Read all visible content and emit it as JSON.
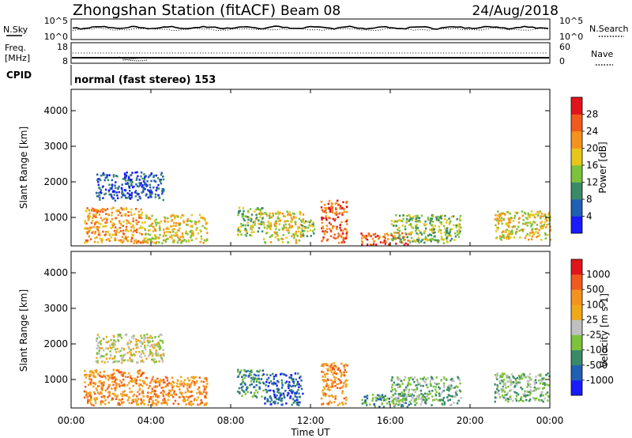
{
  "header": {
    "station": "Zhongshan Station (fitACF)",
    "beam": "Beam 08",
    "date": "24/Aug/2018"
  },
  "noise_panel": {
    "left_label": "N.Sky",
    "right_label": "N.Search",
    "left_ticks": [
      "10^5",
      "10^0"
    ],
    "right_ticks": [
      "10^5",
      "10^0"
    ]
  },
  "freq_panel": {
    "left_label": "Freq.",
    "left_unit": "[MHz]",
    "right_label": "Nave",
    "left_ticks": [
      "18",
      "8"
    ],
    "right_ticks": [
      "60",
      "0"
    ]
  },
  "cpid": {
    "label": "CPID",
    "text": "normal (fast stereo) 153"
  },
  "x_axis": {
    "label": "Time UT",
    "ticks": [
      "00:00",
      "04:00",
      "08:00",
      "12:00",
      "16:00",
      "20:00",
      "00:00"
    ],
    "range_hours": [
      0,
      24
    ]
  },
  "chart_data": [
    {
      "type": "heatmap",
      "quantity": "Power",
      "ylabel": "Slant Range [km]",
      "yticks": [
        1000,
        2000,
        3000,
        4000
      ],
      "ylim": [
        200,
        4600
      ],
      "colorbar": {
        "label": "Power [dB]",
        "range": [
          0,
          32
        ],
        "ticks": [
          "4",
          "8",
          "12",
          "16",
          "20",
          "24",
          "28"
        ],
        "colors": [
          "#1a1aff",
          "#1f5fb4",
          "#3a8a6a",
          "#7cc23a",
          "#e6c619",
          "#f5921e",
          "#f25a1b",
          "#e0141b"
        ]
      },
      "regions": [
        {
          "t": [
            0.6,
            3.6
          ],
          "r": [
            300,
            1300
          ],
          "level": 5
        },
        {
          "t": [
            3.6,
            6.8
          ],
          "r": [
            300,
            1100
          ],
          "level": 4
        },
        {
          "t": [
            1.2,
            4.6
          ],
          "r": [
            1500,
            2300
          ],
          "level": 1
        },
        {
          "t": [
            8.3,
            9.6
          ],
          "r": [
            500,
            1300
          ],
          "level": 3
        },
        {
          "t": [
            9.6,
            11.6
          ],
          "r": [
            300,
            1200
          ],
          "level": 4
        },
        {
          "t": [
            12.5,
            13.8
          ],
          "r": [
            300,
            1500
          ],
          "level": 6
        },
        {
          "t": [
            11.5,
            12.2
          ],
          "r": [
            500,
            1000
          ],
          "level": 3
        },
        {
          "t": [
            14.5,
            17.0
          ],
          "r": [
            250,
            600
          ],
          "level": 6
        },
        {
          "t": [
            16.0,
            19.5
          ],
          "r": [
            300,
            1100
          ],
          "level": 3
        },
        {
          "t": [
            21.2,
            24.0
          ],
          "r": [
            400,
            1200
          ],
          "level": 4
        }
      ]
    },
    {
      "type": "heatmap",
      "quantity": "Velocity",
      "ylabel": "Slant Range [km]",
      "yticks": [
        1000,
        2000,
        3000,
        4000
      ],
      "ylim": [
        200,
        4600
      ],
      "colorbar": {
        "label": "Velocity [m s-1]",
        "ticks": [
          "1000",
          "500",
          "100",
          "25",
          "-25",
          "-100",
          "-500",
          "-1000"
        ],
        "colors": [
          "#1a1aff",
          "#1f5fb4",
          "#3a8a6a",
          "#7cc23a",
          "#c0c0c0",
          "#f0a818",
          "#f5921e",
          "#f25a1b",
          "#e0141b"
        ]
      },
      "regions": [
        {
          "t": [
            0.6,
            3.6
          ],
          "r": [
            300,
            1300
          ],
          "level": 6
        },
        {
          "t": [
            3.6,
            6.8
          ],
          "r": [
            300,
            1100
          ],
          "level": 6
        },
        {
          "t": [
            1.2,
            4.6
          ],
          "r": [
            1500,
            2300
          ],
          "level": 4
        },
        {
          "t": [
            8.3,
            9.6
          ],
          "r": [
            500,
            1300
          ],
          "level": 2
        },
        {
          "t": [
            9.6,
            11.6
          ],
          "r": [
            300,
            1200
          ],
          "level": 1
        },
        {
          "t": [
            12.5,
            13.8
          ],
          "r": [
            300,
            1500
          ],
          "level": 6
        },
        {
          "t": [
            14.5,
            17.0
          ],
          "r": [
            250,
            600
          ],
          "level": 2
        },
        {
          "t": [
            16.0,
            19.5
          ],
          "r": [
            300,
            1100
          ],
          "level": 3
        },
        {
          "t": [
            21.2,
            24.0
          ],
          "r": [
            400,
            1200
          ],
          "level": 3
        }
      ]
    }
  ]
}
